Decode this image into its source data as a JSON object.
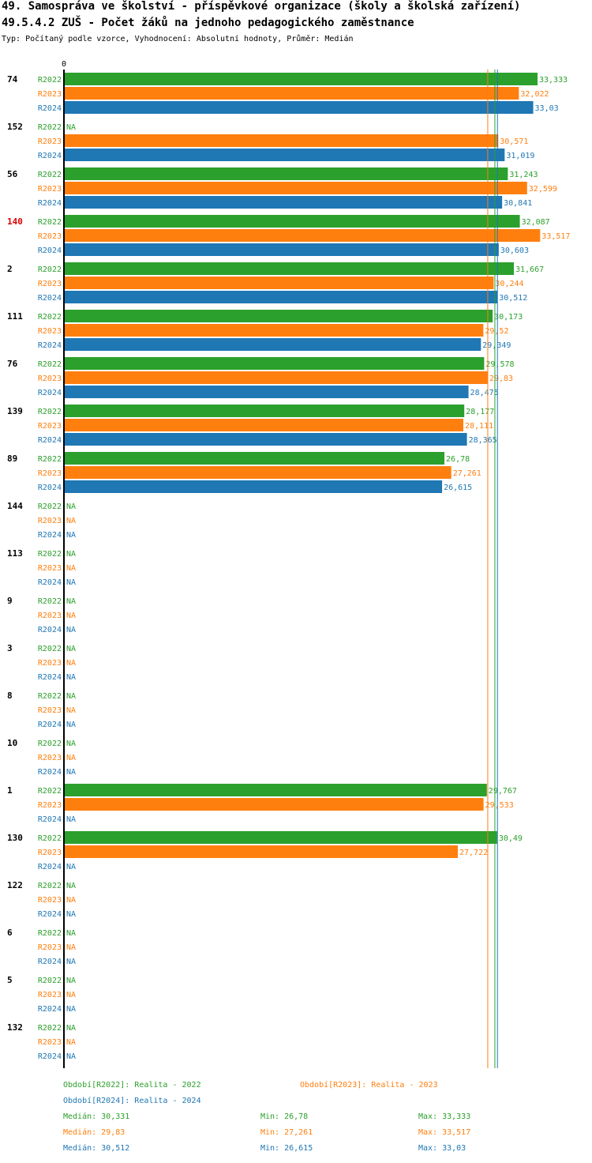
{
  "header": {
    "title_line1": "49. Samospráva ve školství - příspěvkové organizace (školy a školská zařízení)",
    "title_line2": "49.5.4.2 ZUŠ - Počet žáků na jednoho pedagogického zaměstnance",
    "subtitle": "Typ: Počítaný podle vzorce, Vyhodnocení: Absolutní hodnoty, Průměr: Medián"
  },
  "chart_data": {
    "type": "bar",
    "orientation": "horizontal",
    "axis_zero_label": "0",
    "xlim": [
      0,
      35
    ],
    "na_label": "NA",
    "highlighted_category": "140",
    "categories": [
      "74",
      "152",
      "56",
      "140",
      "2",
      "111",
      "76",
      "139",
      "89",
      "144",
      "113",
      "9",
      "3",
      "8",
      "10",
      "1",
      "130",
      "122",
      "6",
      "5",
      "132"
    ],
    "series": [
      {
        "name": "R2022",
        "color": "#2ca02c",
        "values": [
          33.333,
          null,
          31.243,
          32.087,
          31.667,
          30.173,
          29.578,
          28.177,
          26.78,
          null,
          null,
          null,
          null,
          null,
          null,
          29.767,
          30.49,
          null,
          null,
          null,
          null
        ],
        "labels": [
          "33,333",
          "NA",
          "31,243",
          "32,087",
          "31,667",
          "30,173",
          "29,578",
          "28,177",
          "26,78",
          "NA",
          "NA",
          "NA",
          "NA",
          "NA",
          "NA",
          "29,767",
          "30,49",
          "NA",
          "NA",
          "NA",
          "NA"
        ]
      },
      {
        "name": "R2023",
        "color": "#ff7f0e",
        "values": [
          32.022,
          30.571,
          32.599,
          33.517,
          30.244,
          29.52,
          29.83,
          28.111,
          27.261,
          null,
          null,
          null,
          null,
          null,
          null,
          29.533,
          27.722,
          null,
          null,
          null,
          null
        ],
        "labels": [
          "32,022",
          "30,571",
          "32,599",
          "33,517",
          "30,244",
          "29,52",
          "29,83",
          "28,111",
          "27,261",
          "NA",
          "NA",
          "NA",
          "NA",
          "NA",
          "NA",
          "29,533",
          "27,722",
          "NA",
          "NA",
          "NA",
          "NA"
        ]
      },
      {
        "name": "R2024",
        "color": "#1f77b4",
        "values": [
          33.03,
          31.019,
          30.841,
          30.603,
          30.512,
          29.349,
          28.475,
          28.365,
          26.615,
          null,
          null,
          null,
          null,
          null,
          null,
          null,
          null,
          null,
          null,
          null,
          null
        ],
        "labels": [
          "33,03",
          "31,019",
          "30,841",
          "30,603",
          "30,512",
          "29,349",
          "28,475",
          "28,365",
          "26,615",
          "NA",
          "NA",
          "NA",
          "NA",
          "NA",
          "NA",
          "NA",
          "NA",
          "NA",
          "NA",
          "NA",
          "NA"
        ]
      }
    ],
    "reference_lines": [
      {
        "series": "R2022",
        "value": 30.331
      },
      {
        "series": "R2023",
        "value": 29.83
      },
      {
        "series": "R2024",
        "value": 30.512
      }
    ]
  },
  "legend": {
    "r2022": "Období[R2022]: Realita - 2022",
    "r2023": "Období[R2023]: Realita - 2023",
    "r2024": "Období[R2024]: Realita - 2024"
  },
  "stats": [
    {
      "median": "Medián: 30,331",
      "min": "Min: 26,78",
      "max": "Max: 33,333",
      "color": "#2ca02c"
    },
    {
      "median": "Medián: 29,83",
      "min": "Min: 27,261",
      "max": "Max: 33,517",
      "color": "#ff7f0e"
    },
    {
      "median": "Medián: 30,512",
      "min": "Min: 26,615",
      "max": "Max: 33,03",
      "color": "#1f77b4"
    }
  ]
}
